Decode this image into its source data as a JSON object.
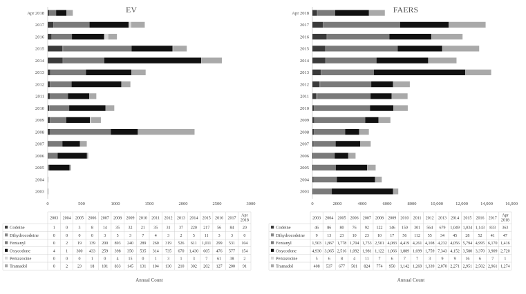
{
  "colors": {
    "Codeine": "#3a3a3a",
    "Dihydrocodeine": "#888888",
    "Fentanyl": "#7a7a7a",
    "Oxycodone": "#111111",
    "Pentazocine": "#d8d8d8",
    "Tramadol": "#a9a9a9"
  },
  "chart_data": [
    {
      "type": "bar",
      "orientation": "horizontal",
      "stacked": true,
      "title": "EV",
      "xlabel": "Annual Count",
      "xlim": [
        0,
        3000
      ],
      "xticks": [
        0,
        500,
        1000,
        1500,
        2000,
        2500,
        3000
      ],
      "xtick_labels": [
        "0",
        "500",
        "1000",
        "1500",
        "2000",
        "2500",
        "3000"
      ],
      "categories": [
        "2003",
        "2004",
        "2005",
        "2006",
        "2007",
        "2008",
        "2009",
        "2010",
        "2011",
        "2012",
        "2013",
        "2014",
        "2015",
        "2016",
        "2017",
        "Apr 2018"
      ],
      "table_header": [
        "2003",
        "2004",
        "2005",
        "2006",
        "2007",
        "2008",
        "2009",
        "2010",
        "2011",
        "2012",
        "2013",
        "2014",
        "2015",
        "2016",
        "2017",
        "Apr\n2018"
      ],
      "series": [
        {
          "name": "Codeine",
          "values": [
            1,
            0,
            3,
            8,
            14,
            35,
            32,
            21,
            35,
            31,
            37,
            220,
            217,
            56,
            84,
            20
          ]
        },
        {
          "name": "Dihydrocodeine",
          "values": [
            0,
            0,
            0,
            0,
            3,
            5,
            3,
            7,
            4,
            3,
            2,
            5,
            11,
            3,
            3,
            0
          ]
        },
        {
          "name": "Fentanyl",
          "values": [
            0,
            2,
            19,
            139,
            200,
            893,
            240,
            289,
            260,
            319,
            526,
            611,
            1011,
            299,
            531,
            104
          ]
        },
        {
          "name": "Oxycodone",
          "values": [
            4,
            1,
            300,
            433,
            259,
            398,
            350,
            535,
            314,
            735,
            670,
            1430,
            605,
            476,
            577,
            154
          ]
        },
        {
          "name": "Pentazocine",
          "values": [
            0,
            0,
            0,
            1,
            0,
            4,
            15,
            0,
            1,
            3,
            1,
            3,
            7,
            61,
            38,
            2
          ]
        },
        {
          "name": "Tramadol",
          "values": [
            0,
            2,
            23,
            18,
            101,
            833,
            145,
            131,
            104,
            130,
            210,
            302,
            202,
            127,
            200,
            91
          ]
        }
      ]
    },
    {
      "type": "bar",
      "orientation": "horizontal",
      "stacked": true,
      "title": "FAERS",
      "xlabel": "Annual Count",
      "xlim": [
        0,
        16000
      ],
      "xticks": [
        0,
        2000,
        4000,
        6000,
        8000,
        10000,
        12000,
        14000,
        16000
      ],
      "xtick_labels": [
        "0",
        "2000",
        "4000",
        "6000",
        "8000",
        "10,000",
        "12,000",
        "14,000",
        "16,000"
      ],
      "categories": [
        "2003",
        "2004",
        "2005",
        "2006",
        "2007",
        "2008",
        "2009",
        "2010",
        "2011",
        "2012",
        "2013",
        "2014",
        "2015",
        "2016",
        "2017",
        "Apr 2018"
      ],
      "table_header": [
        "2003",
        "2004",
        "2005",
        "2006",
        "2007",
        "2008",
        "2009",
        "2010",
        "2011",
        "2012",
        "2013",
        "2014",
        "2015",
        "2016",
        "2017",
        "Apr\n2018"
      ],
      "series": [
        {
          "name": "Codeine",
          "values": [
            46,
            86,
            80,
            76,
            92,
            122,
            146,
            150,
            301,
            564,
            679,
            1049,
            1034,
            1143,
            833,
            363
          ]
        },
        {
          "name": "Dihydrocodeine",
          "values": [
            9,
            13,
            23,
            10,
            23,
            10,
            17,
            56,
            112,
            55,
            34,
            45,
            28,
            52,
            41,
            47
          ]
        },
        {
          "name": "Fentanyl",
          "values": [
            1503,
            1867,
            1778,
            1704,
            1753,
            2501,
            4083,
            4419,
            4261,
            4108,
            4232,
            4056,
            5794,
            4995,
            6170,
            1416
          ]
        },
        {
          "name": "Oxycodone",
          "values": [
            4930,
            3065,
            2516,
            1092,
            1981,
            1122,
            1066,
            1889,
            1699,
            1759,
            7343,
            4152,
            3580,
            3370,
            3909,
            2720
          ]
        },
        {
          "name": "Pentazocine",
          "values": [
            5,
            6,
            8,
            4,
            11,
            7,
            6,
            7,
            7,
            3,
            9,
            9,
            16,
            6,
            7,
            1
          ]
        },
        {
          "name": "Tramadol",
          "values": [
            408,
            537,
            677,
            581,
            824,
            774,
            950,
            1142,
            1269,
            1339,
            2070,
            2271,
            2951,
            2502,
            2961,
            1274
          ]
        }
      ]
    }
  ]
}
